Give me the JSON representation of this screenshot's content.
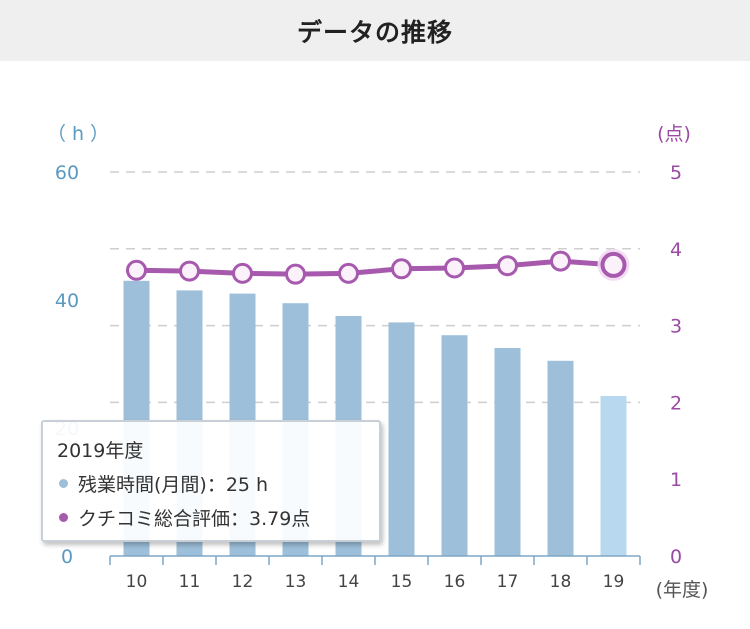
{
  "header": {
    "title": "データの推移"
  },
  "chart_data": {
    "type": "bar+line",
    "x_categories": [
      "10",
      "11",
      "12",
      "13",
      "14",
      "15",
      "16",
      "17",
      "18",
      "19"
    ],
    "x_unit_label": "(年度)",
    "left_axis": {
      "unit_label": "（ h ）",
      "ylim": [
        0,
        60
      ],
      "ticks": [
        "0",
        "20",
        "40",
        "60"
      ],
      "color": "#5b9ac0"
    },
    "right_axis": {
      "unit_label": "(点)",
      "ylim": [
        0,
        5
      ],
      "ticks": [
        "0",
        "1",
        "2",
        "3",
        "4",
        "5"
      ],
      "color": "#9b4aa4"
    },
    "bar_series": {
      "name": "残業時間(月間)",
      "values": [
        43,
        41.5,
        41,
        39.5,
        37.5,
        36.5,
        34.5,
        32.5,
        30.5,
        25
      ],
      "color": "#9dbfd9",
      "highlight_color": "#b7d8ef"
    },
    "line_series": {
      "name": "クチコミ総合評価",
      "values": [
        3.72,
        3.71,
        3.68,
        3.67,
        3.68,
        3.74,
        3.75,
        3.78,
        3.84,
        3.79
      ],
      "color": "#a659ad"
    },
    "gridlines": "dashed",
    "highlighted_index": 9
  },
  "tooltip": {
    "title": "2019年度",
    "bar_text": "残業時間(月間)：25 h",
    "line_text": "クチコミ総合評価：3.79点",
    "bar_dot_color": "#9dbfd9",
    "line_dot_color": "#a659ad"
  }
}
